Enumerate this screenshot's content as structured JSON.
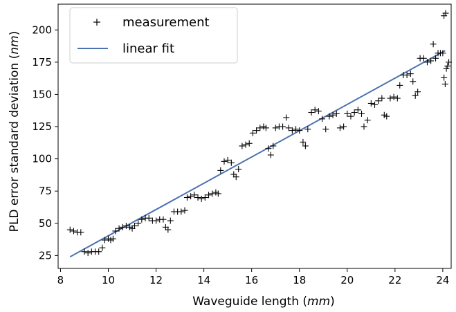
{
  "chart_data": {
    "type": "scatter",
    "xlabel_prefix": "Waveguide length (",
    "xlabel_unit": "mm",
    "xlabel_suffix": ")",
    "ylabel_prefix": "PLD error standard deviation (",
    "ylabel_unit": "nm",
    "ylabel_suffix": ")",
    "xlim": [
      7.9,
      24.35
    ],
    "ylim": [
      15,
      220
    ],
    "x_ticks": [
      8,
      10,
      12,
      14,
      16,
      18,
      20,
      22,
      24
    ],
    "y_ticks": [
      25,
      50,
      75,
      100,
      125,
      150,
      175,
      200
    ],
    "grid": false,
    "legend_position": "top-left",
    "series": [
      {
        "name": "measurement",
        "marker": "+",
        "color": "#000000",
        "points": [
          [
            8.4,
            45
          ],
          [
            8.55,
            44
          ],
          [
            8.7,
            43
          ],
          [
            8.85,
            43
          ],
          [
            9.0,
            28
          ],
          [
            9.15,
            27
          ],
          [
            9.3,
            28
          ],
          [
            9.45,
            28
          ],
          [
            9.6,
            28
          ],
          [
            9.75,
            31
          ],
          [
            9.85,
            37
          ],
          [
            10.0,
            38
          ],
          [
            10.1,
            37
          ],
          [
            10.2,
            38
          ],
          [
            10.3,
            44
          ],
          [
            10.45,
            46
          ],
          [
            10.6,
            47
          ],
          [
            10.75,
            48
          ],
          [
            10.9,
            47
          ],
          [
            11.0,
            46
          ],
          [
            11.1,
            48
          ],
          [
            11.25,
            50
          ],
          [
            11.4,
            53
          ],
          [
            11.55,
            54
          ],
          [
            11.7,
            54
          ],
          [
            11.85,
            52
          ],
          [
            12.0,
            52
          ],
          [
            12.15,
            53
          ],
          [
            12.3,
            53
          ],
          [
            12.4,
            47
          ],
          [
            12.5,
            45
          ],
          [
            12.6,
            52
          ],
          [
            12.75,
            59
          ],
          [
            12.9,
            59
          ],
          [
            13.05,
            59
          ],
          [
            13.2,
            60
          ],
          [
            13.3,
            70
          ],
          [
            13.45,
            71
          ],
          [
            13.6,
            72
          ],
          [
            13.75,
            70
          ],
          [
            13.9,
            69
          ],
          [
            14.05,
            70
          ],
          [
            14.2,
            72
          ],
          [
            14.35,
            73
          ],
          [
            14.5,
            74
          ],
          [
            14.6,
            73
          ],
          [
            14.7,
            91
          ],
          [
            14.85,
            98
          ],
          [
            15.0,
            99
          ],
          [
            15.15,
            97
          ],
          [
            15.25,
            88
          ],
          [
            15.35,
            86
          ],
          [
            15.45,
            92
          ],
          [
            15.6,
            110
          ],
          [
            15.75,
            111
          ],
          [
            15.9,
            112
          ],
          [
            16.05,
            120
          ],
          [
            16.2,
            122
          ],
          [
            16.35,
            124
          ],
          [
            16.5,
            125
          ],
          [
            16.6,
            124
          ],
          [
            16.7,
            108
          ],
          [
            16.8,
            103
          ],
          [
            16.9,
            110
          ],
          [
            17.0,
            124
          ],
          [
            17.15,
            125
          ],
          [
            17.3,
            125
          ],
          [
            17.45,
            132
          ],
          [
            17.55,
            124
          ],
          [
            17.7,
            122
          ],
          [
            17.85,
            123
          ],
          [
            18.0,
            122
          ],
          [
            18.15,
            113
          ],
          [
            18.25,
            110
          ],
          [
            18.35,
            123
          ],
          [
            18.5,
            136
          ],
          [
            18.65,
            138
          ],
          [
            18.8,
            137
          ],
          [
            18.95,
            131
          ],
          [
            19.1,
            123
          ],
          [
            19.25,
            133
          ],
          [
            19.4,
            134
          ],
          [
            19.55,
            135
          ],
          [
            19.7,
            124
          ],
          [
            19.85,
            125
          ],
          [
            20.0,
            135
          ],
          [
            20.15,
            133
          ],
          [
            20.3,
            136
          ],
          [
            20.45,
            138
          ],
          [
            20.6,
            135
          ],
          [
            20.7,
            125
          ],
          [
            20.85,
            130
          ],
          [
            21.0,
            143
          ],
          [
            21.15,
            142
          ],
          [
            21.3,
            145
          ],
          [
            21.45,
            147
          ],
          [
            21.55,
            134
          ],
          [
            21.65,
            133
          ],
          [
            21.8,
            147
          ],
          [
            21.95,
            148
          ],
          [
            22.1,
            147
          ],
          [
            22.2,
            157
          ],
          [
            22.35,
            165
          ],
          [
            22.5,
            165
          ],
          [
            22.65,
            166
          ],
          [
            22.75,
            160
          ],
          [
            22.85,
            149
          ],
          [
            22.95,
            152
          ],
          [
            23.05,
            178
          ],
          [
            23.2,
            178
          ],
          [
            23.35,
            175
          ],
          [
            23.5,
            176
          ],
          [
            23.6,
            189
          ],
          [
            23.7,
            178
          ],
          [
            23.8,
            182
          ],
          [
            23.9,
            182
          ],
          [
            24.0,
            182
          ],
          [
            24.05,
            163
          ],
          [
            24.1,
            158
          ],
          [
            24.15,
            170
          ],
          [
            24.2,
            172
          ],
          [
            24.25,
            175
          ],
          [
            24.05,
            211
          ],
          [
            24.12,
            213
          ]
        ]
      },
      {
        "name": "linear fit",
        "type": "line",
        "color": "#4c72b0",
        "x": [
          8.4,
          24.1
        ],
        "y": [
          24,
          184
        ]
      }
    ]
  }
}
